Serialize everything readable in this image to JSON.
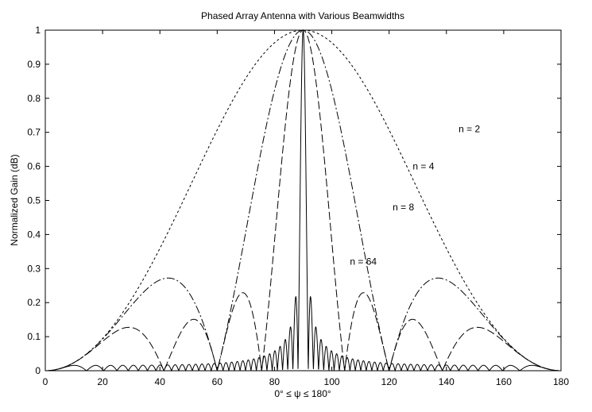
{
  "chart_data": {
    "type": "line",
    "title": "Phased Array Antenna with Various Beamwidths",
    "xlabel": "0° ≤ ψ ≤ 180°",
    "ylabel": "Normalized Gain (dB)",
    "xlim": [
      0,
      180
    ],
    "ylim": [
      0,
      1
    ],
    "xticks": [
      "0",
      "20",
      "40",
      "60",
      "80",
      "100",
      "120",
      "140",
      "160",
      "180"
    ],
    "yticks": [
      "0",
      "0.1",
      "0.2",
      "0.3",
      "0.4",
      "0.5",
      "0.6",
      "0.7",
      "0.8",
      "0.9",
      "1"
    ],
    "grid": false,
    "legend": "none",
    "annotations": [
      {
        "text": "n = 2",
        "x": 148,
        "y": 0.71
      },
      {
        "text": "n = 4",
        "x": 132,
        "y": 0.6
      },
      {
        "text": "n = 8",
        "x": 125,
        "y": 0.48
      },
      {
        "text": "n = 64",
        "x": 111,
        "y": 0.32
      }
    ],
    "series": [
      {
        "n": 2,
        "style": "dotted",
        "color": "#000000"
      },
      {
        "n": 4,
        "style": "dash-dot",
        "color": "#000000"
      },
      {
        "n": 8,
        "style": "dashed",
        "color": "#000000"
      },
      {
        "n": 64,
        "style": "solid",
        "color": "#000000"
      }
    ]
  }
}
